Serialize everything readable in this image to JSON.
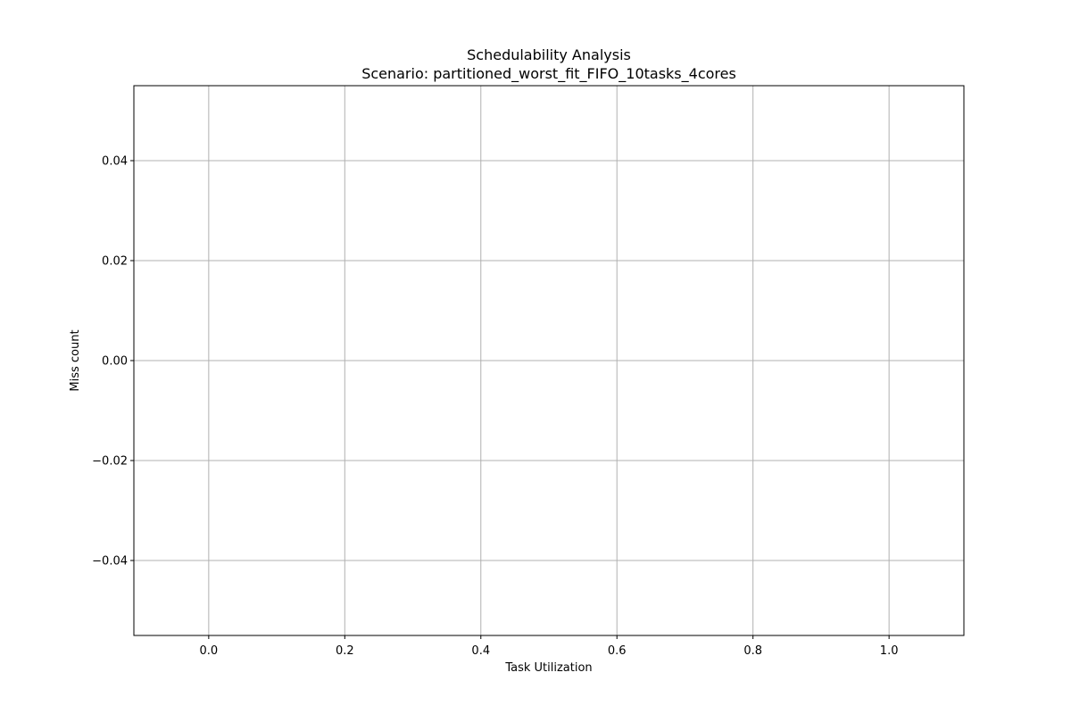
{
  "chart_data": {
    "type": "scatter",
    "title": "Schedulability Analysis",
    "subtitle": "Scenario: partitioned_worst_fit_FIFO_10tasks_4cores",
    "xlabel": "Task Utilization",
    "ylabel": "Miss count",
    "xlim": [
      -0.11,
      1.11
    ],
    "ylim": [
      -0.055,
      0.055
    ],
    "x_ticks": [
      0.0,
      0.2,
      0.4,
      0.6,
      0.8,
      1.0
    ],
    "x_tick_labels": [
      "0.0",
      "0.2",
      "0.4",
      "0.6",
      "0.8",
      "1.0"
    ],
    "y_ticks": [
      0.04,
      0.02,
      0.0,
      -0.02,
      -0.04
    ],
    "y_tick_labels": [
      "0.04",
      "0.02",
      "0.00",
      "−0.02",
      "−0.04"
    ],
    "grid": true,
    "series": [
      {
        "x": [],
        "y": []
      }
    ],
    "colors": {
      "grid": "#b0b0b0",
      "axes": "#000000",
      "background": "#ffffff"
    }
  }
}
